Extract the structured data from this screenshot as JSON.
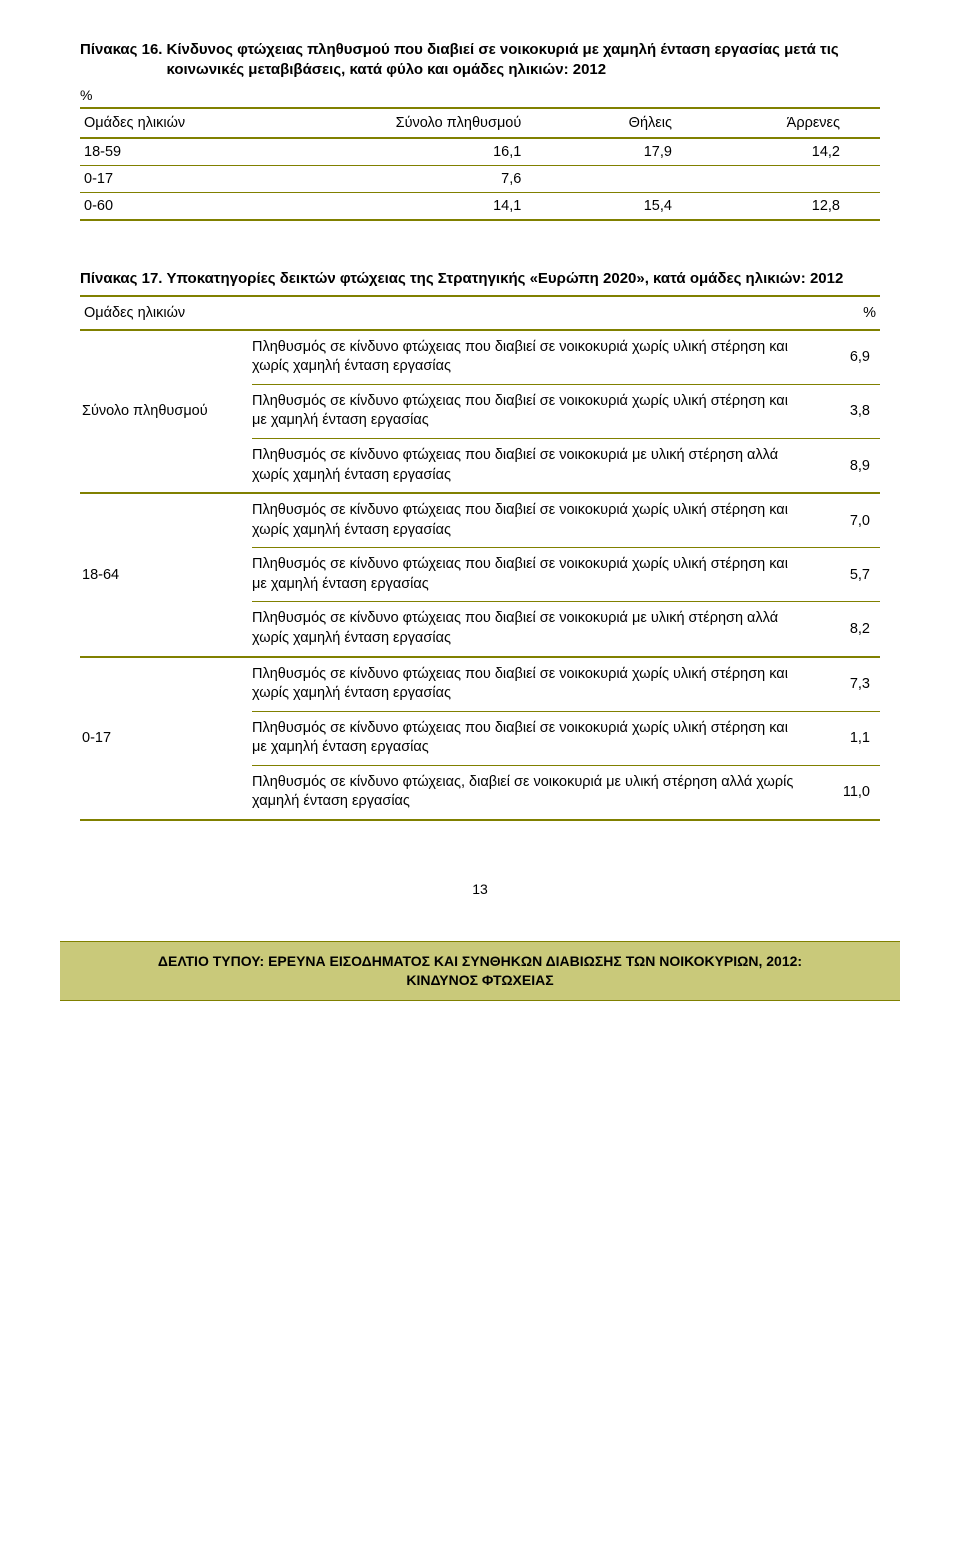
{
  "colors": {
    "olive": "#808000",
    "olive_light": "#c9c97a",
    "text": "#000000",
    "background": "#ffffff"
  },
  "typography": {
    "body_fontsize": 14.5,
    "caption_fontsize": 15,
    "caption_weight": "bold"
  },
  "table16": {
    "type": "table",
    "caption_lead": "Πίνακας 16.",
    "caption_body": "Κίνδυνος φτώχειας πληθυσμού που διαβιεί σε νοικοκυριά με χαμηλή ένταση εργασίας μετά τις κοινωνικές μεταβιβάσεις, κατά φύλο και ομάδες ηλικιών: 2012",
    "percent_marker": "%",
    "columns": [
      "Ομάδες ηλικιών",
      "Σύνολο πληθυσμού",
      "Θήλεις",
      "Άρρενες"
    ],
    "rows": [
      {
        "label": "18-59",
        "total": "16,1",
        "female": "17,9",
        "male": "14,2"
      },
      {
        "label": "0-17",
        "total": "7,6",
        "female": "",
        "male": ""
      },
      {
        "label": "0-60",
        "total": "14,1",
        "female": "15,4",
        "male": "12,8"
      }
    ]
  },
  "table17": {
    "type": "table",
    "caption_lead": "Πίνακας 17.",
    "caption_body": "Υποκατηγορίες δεικτών φτώχειας  της Στρατηγικής «Ευρώπη 2020»,  κατά ομάδες ηλικιών: 2012",
    "header_left": "Ομάδες ηλικιών",
    "header_right": "%",
    "groups": [
      {
        "label": "Σύνολο πληθυσμού",
        "rows": [
          {
            "text": "Πληθυσμός  σε κίνδυνο φτώχειας που διαβιεί σε νοικοκυριά χωρίς υλική στέρηση και  χωρίς χαμηλή ένταση εργασίας",
            "value": "6,9"
          },
          {
            "text": "Πληθυσμός  σε κίνδυνο φτώχειας που διαβιεί σε νοικοκυριά χωρίς υλική στέρηση  και με  χαμηλή ένταση εργασίας",
            "value": "3,8"
          },
          {
            "text": "Πληθυσμός  σε κίνδυνο φτώχειας που διαβιεί σε νοικοκυριά με υλική στέρηση αλλά χωρίς  χαμηλή ένταση εργασίας",
            "value": "8,9"
          }
        ]
      },
      {
        "label": "18-64",
        "rows": [
          {
            "text": "Πληθυσμός  σε κίνδυνο φτώχειας που διαβιεί σε νοικοκυριά χωρίς υλική στέρηση και  χωρίς χαμηλή ένταση εργασίας",
            "value": "7,0"
          },
          {
            "text": "Πληθυσμός  σε κίνδυνο φτώχειας που διαβιεί σε νοικοκυριά χωρίς υλική στέρηση  και με  χαμηλή ένταση εργασίας",
            "value": "5,7"
          },
          {
            "text": "Πληθυσμός  σε κίνδυνο φτώχειας που διαβιεί σε νοικοκυριά με υλική στέρηση αλλά χωρίς  χαμηλή ένταση εργασίας",
            "value": "8,2"
          }
        ]
      },
      {
        "label": "0-17",
        "rows": [
          {
            "text": "Πληθυσμός  σε κίνδυνο φτώχειας που διαβιεί σε νοικοκυριά χωρίς υλική στέρηση και  χωρίς χαμηλή ένταση εργασίας",
            "value": "7,3"
          },
          {
            "text": "Πληθυσμός  σε κίνδυνο φτώχειας που διαβιεί σε νοικοκυριά χωρίς υλική στέρηση  και με  χαμηλή ένταση εργασίας",
            "value": "1,1"
          },
          {
            "text": "Πληθυσμός  σε κίνδυνο φτώχειας, διαβιεί σε νοικοκυριά με υλική στέρηση αλλά χωρίς  χαμηλή ένταση εργασίας",
            "value": "11,0"
          }
        ]
      }
    ]
  },
  "page_number": "13",
  "footer_line1": "ΔΕΛΤΙΟ ΤΥΠΟΥ:  ΕΡΕΥΝΑ ΕΙΣΟΔΗΜΑΤΟΣ  ΚΑΙ ΣΥΝΘΗΚΩΝ  ΔΙΑΒΙΩΣΗΣ ΤΩΝ ΝΟΙΚΟΚΥΡΙΩΝ, 2012:",
  "footer_line2": "ΚΙΝΔΥΝΟΣ ΦΤΩΧΕΙΑΣ"
}
